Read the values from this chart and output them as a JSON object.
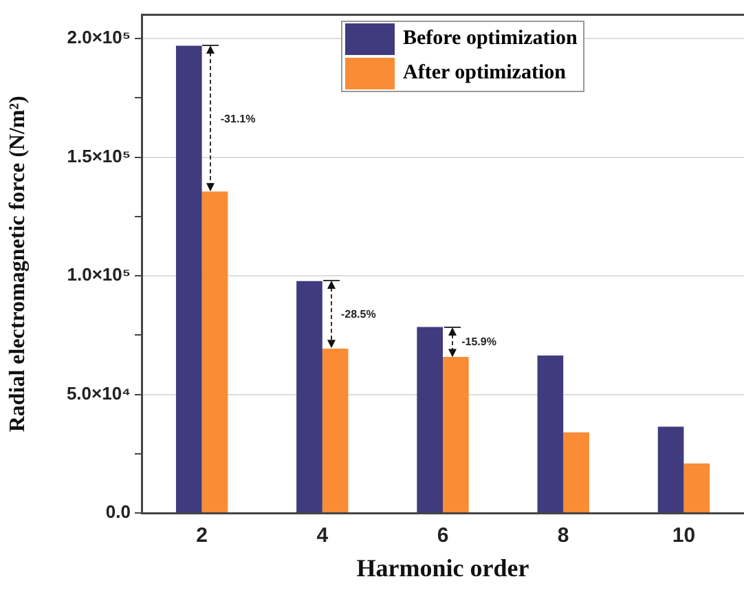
{
  "chart_data": {
    "type": "bar",
    "xlabel": "Harmonic order",
    "ylabel": "Radial electromagnetic force (N/m²)",
    "categories": [
      "2",
      "4",
      "6",
      "8",
      "10"
    ],
    "series": [
      {
        "name": "Before optimization",
        "color": "#3f3b7e",
        "values": [
          197000,
          97800,
          78400,
          66400,
          36400
        ]
      },
      {
        "name": "After optimization",
        "color": "#f98c34",
        "values": [
          135500,
          69300,
          65800,
          34000,
          20900
        ]
      }
    ],
    "ylim": [
      0,
      210000
    ],
    "yticks": [
      {
        "value": 0,
        "label": "0.0"
      },
      {
        "value": 25000,
        "label": null
      },
      {
        "value": 50000,
        "label": "5.0×10⁴"
      },
      {
        "value": 75000,
        "label": null
      },
      {
        "value": 100000,
        "label": "1.0×10⁵"
      },
      {
        "value": 125000,
        "label": null
      },
      {
        "value": 150000,
        "label": "1.5×10⁵"
      },
      {
        "value": 175000,
        "label": null
      },
      {
        "value": 200000,
        "label": "2.0×10⁵"
      }
    ],
    "grid": "y",
    "legend": "top",
    "annotations": [
      {
        "text": "-31.1%",
        "x": "2",
        "y": 166000
      },
      {
        "text": "-28.5%",
        "x": "4",
        "y": 83500
      },
      {
        "text": "-15.9%",
        "x": "6",
        "y": 72000
      }
    ]
  }
}
